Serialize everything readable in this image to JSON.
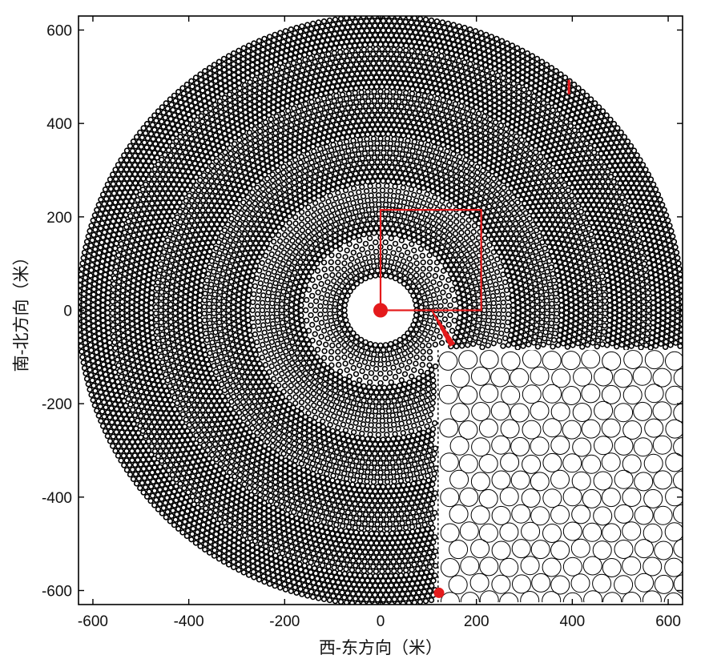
{
  "chart_data": {
    "type": "scatter",
    "title": "",
    "xlabel": "西-东方向（米）",
    "ylabel": "南-北方向（米）",
    "xlim": [
      -630,
      630
    ],
    "ylim": [
      -630,
      630
    ],
    "xticks": [
      -600,
      -400,
      -200,
      0,
      200,
      400,
      600
    ],
    "yticks": [
      600,
      400,
      200,
      0,
      -200,
      -400,
      -600
    ],
    "xtick_labels": [
      "-600",
      "-400",
      "-200",
      "0",
      "200",
      "400",
      "600"
    ],
    "ytick_labels": [
      "600",
      "400",
      "200",
      "0",
      "-200",
      "-400",
      "-600"
    ],
    "grid": false,
    "heliostat_field": {
      "inner_radius": 70,
      "outer_radius": 630,
      "mirror_diameter": 10.5,
      "zone_boundaries": [
        160,
        270,
        370,
        470,
        560
      ],
      "excluded_quadrant": "south-east (x > 120, y < -85)"
    },
    "tower": {
      "x": 0,
      "y": 0
    },
    "target_box": {
      "x_min": 0,
      "x_max": 210,
      "y_min": 0,
      "y_max": 215
    },
    "zoom_pointer": {
      "from": [
        108,
        -2
      ],
      "to": [
        150,
        -75
      ]
    },
    "zoom_panel": {
      "data_x_range": [
        120,
        630
      ],
      "data_y_range": [
        -625,
        -85
      ]
    },
    "markers": [
      {
        "x": 122,
        "y": -605,
        "shape": "dot"
      },
      {
        "x": 393,
        "y": 478,
        "shape": "tick"
      }
    ],
    "colors": {
      "mirror": "#000000",
      "highlight": "#e41a1c",
      "frame": "#000000"
    }
  }
}
